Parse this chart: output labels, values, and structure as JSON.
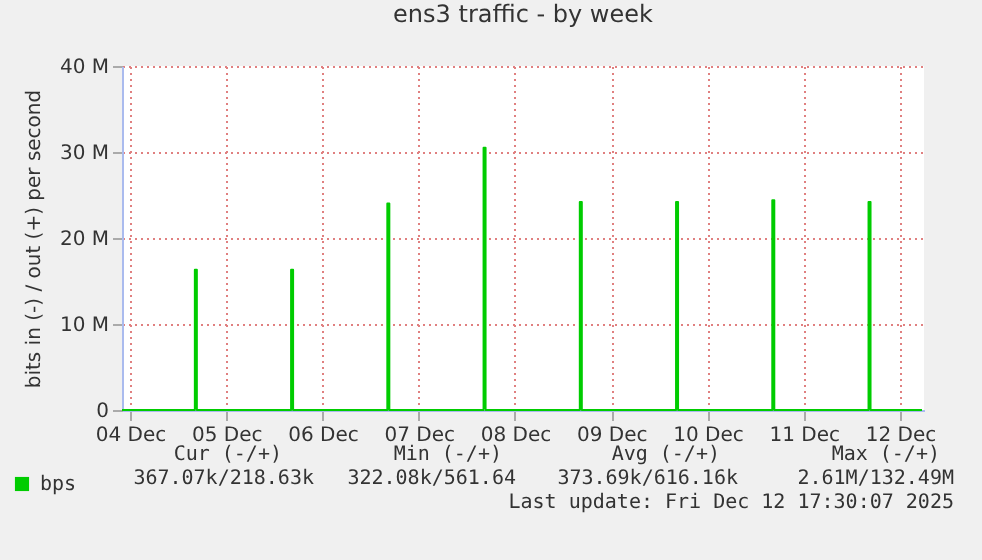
{
  "chart_data": {
    "type": "line",
    "title": "ens3 traffic - by week",
    "ylabel": "bits in (-) / out (+) per second",
    "x": [
      "2025-12-04T10:00",
      "2025-12-05T03:40",
      "2025-12-05T04:10",
      "2025-12-05T04:40",
      "2025-12-06T03:40",
      "2025-12-06T04:10",
      "2025-12-06T04:40",
      "2025-12-07T03:40",
      "2025-12-07T04:10",
      "2025-12-07T04:40",
      "2025-12-08T03:40",
      "2025-12-08T04:10",
      "2025-12-08T04:40",
      "2025-12-09T03:40",
      "2025-12-09T04:10",
      "2025-12-09T04:40",
      "2025-12-10T03:40",
      "2025-12-10T04:10",
      "2025-12-10T04:40",
      "2025-12-11T03:40",
      "2025-12-11T04:10",
      "2025-12-11T04:40",
      "2025-12-12T03:40",
      "2025-12-12T04:10",
      "2025-12-12T04:40",
      "2025-12-12T17:30"
    ],
    "series": [
      {
        "name": "bps",
        "color": "#00cc00",
        "values": [
          0,
          0,
          16.3,
          0,
          0,
          16.3,
          0,
          0,
          24,
          0,
          0,
          30.5,
          0,
          0,
          24.2,
          0,
          0,
          24.2,
          0,
          0,
          24.4,
          0,
          0,
          24.2,
          0,
          0
        ]
      }
    ],
    "xlim": [
      "2025-12-04T10:00",
      "2025-12-12T18:00"
    ],
    "xticks": [
      {
        "value": "2025-12-04T12:00",
        "label": "04 Dec"
      },
      {
        "value": "2025-12-05T12:00",
        "label": "05 Dec"
      },
      {
        "value": "2025-12-06T12:00",
        "label": "06 Dec"
      },
      {
        "value": "2025-12-07T12:00",
        "label": "07 Dec"
      },
      {
        "value": "2025-12-08T12:00",
        "label": "08 Dec"
      },
      {
        "value": "2025-12-09T12:00",
        "label": "09 Dec"
      },
      {
        "value": "2025-12-10T12:00",
        "label": "10 Dec"
      },
      {
        "value": "2025-12-11T12:00",
        "label": "11 Dec"
      },
      {
        "value": "2025-12-12T12:00",
        "label": "12 Dec"
      }
    ],
    "ylim": [
      0,
      40
    ],
    "yticks": [
      0,
      {
        "value": 10,
        "label": "10 M"
      },
      {
        "value": 20,
        "label": "20 M"
      },
      {
        "value": 30,
        "label": "30 M"
      },
      {
        "value": 40,
        "label": "40 M"
      }
    ],
    "grid": true,
    "legend": "bottom left",
    "annotations": [
      "Cur (-/+)",
      "Min (-/+)",
      "Avg (-/+)",
      "Max (-/+)",
      "367.07k/218.63k",
      "322.08k/561.64",
      "373.69k/616.16k",
      "2.61M/132.49M",
      "Last update: Fri Dec 12 17:30:07 2025"
    ]
  }
}
